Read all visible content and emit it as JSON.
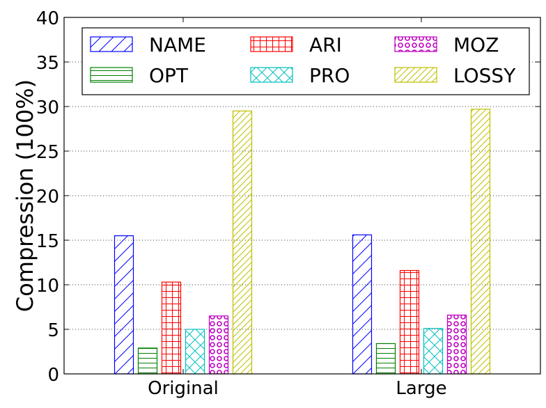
{
  "chart_data": {
    "type": "bar",
    "categories": [
      "Original",
      "Large"
    ],
    "ylabel": "Compression (100%)",
    "xlabel": "",
    "title": "",
    "ylim": [
      0,
      40
    ],
    "yticks": [
      0,
      5,
      10,
      15,
      20,
      25,
      30,
      35,
      40
    ],
    "grid": true,
    "legend_position": "top",
    "legend_columns": 3,
    "series": [
      {
        "name": "NAME",
        "values": [
          15.5,
          15.6
        ],
        "color": "#0000ff",
        "hatch": "diagonal"
      },
      {
        "name": "OPT",
        "values": [
          2.9,
          3.4
        ],
        "color": "#008000",
        "hatch": "horizontal"
      },
      {
        "name": "ARI",
        "values": [
          10.3,
          11.6
        ],
        "color": "#ff0000",
        "hatch": "grid"
      },
      {
        "name": "PRO",
        "values": [
          5.0,
          5.1
        ],
        "color": "#00bfbf",
        "hatch": "cross"
      },
      {
        "name": "MOZ",
        "values": [
          6.5,
          6.6
        ],
        "color": "#bf00bf",
        "hatch": "circles"
      },
      {
        "name": "LOSSY",
        "values": [
          29.5,
          29.7
        ],
        "color": "#bfbf00",
        "hatch": "diagonal-dense"
      }
    ]
  }
}
